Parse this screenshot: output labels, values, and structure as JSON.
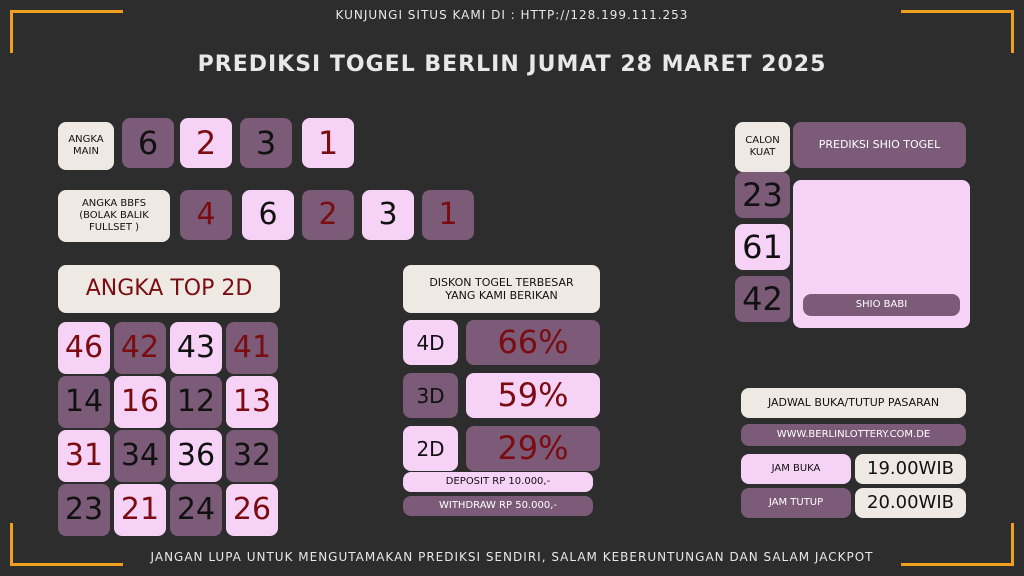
{
  "header": {
    "visit": "KUNJUNGI SITUS KAMI DI : HTTP://128.199.111.253",
    "title": "PREDIKSI TOGEL BERLIN JUMAT 28 MARET 2025"
  },
  "angka_main": {
    "label": [
      "ANGKA",
      "MAIN"
    ],
    "digits": [
      "6",
      "2",
      "3",
      "1"
    ]
  },
  "bbfs": {
    "label": [
      "ANGKA BBFS",
      "(BOLAK BALIK",
      "FULLSET )"
    ],
    "digits": [
      "4",
      "6",
      "2",
      "3",
      "1"
    ]
  },
  "top2d": {
    "label": "ANGKA TOP 2D",
    "numbers": [
      [
        "46",
        "42",
        "43",
        "41"
      ],
      [
        "14",
        "16",
        "12",
        "13"
      ],
      [
        "31",
        "34",
        "36",
        "32"
      ],
      [
        "23",
        "21",
        "24",
        "26"
      ]
    ]
  },
  "diskon": {
    "title": [
      "DISKON TOGEL TERBESAR",
      "YANG KAMI BERIKAN"
    ],
    "rows": [
      {
        "game": "4D",
        "rate": "66%"
      },
      {
        "game": "3D",
        "rate": "59%"
      },
      {
        "game": "2D",
        "rate": "29%"
      }
    ],
    "deposit": "DEPOSIT RP 10.000,-",
    "withdraw": "WITHDRAW RP 50.000,-"
  },
  "shio": {
    "calon_label": [
      "CALON",
      "KUAT"
    ],
    "numbers": [
      "23",
      "61",
      "42"
    ],
    "title": "PREDIKSI SHIO TOGEL",
    "name": "SHIO BABI"
  },
  "jadwal": {
    "title": "JADWAL BUKA/TUTUP PASARAN",
    "site": "WWW.BERLINLOTTERY.COM.DE",
    "buka_label": "JAM BUKA",
    "buka": "19.00WIB",
    "tutup_label": "JAM TUTUP",
    "tutup": "20.00WIB"
  },
  "footer": "JANGAN LUPA UNTUK MENGUTAMAKAN PREDIKSI SENDIRI, SALAM KEBERUNTUNGAN DAN SALAM JACKPOT"
}
